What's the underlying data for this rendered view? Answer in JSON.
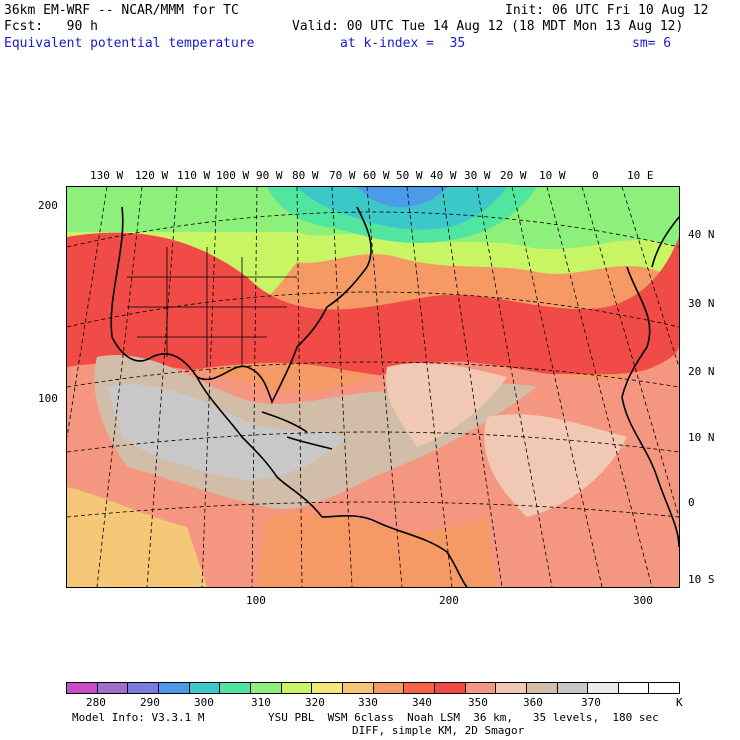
{
  "header": {
    "model": "36km EM-WRF -- NCAR/MMM for TC",
    "init": "Init: 06 UTC Fri 10 Aug 12",
    "fcst": "Fcst:   90 h",
    "valid": "Valid: 00 UTC Tue 14 Aug 12 (18 MDT Mon 13 Aug 12)",
    "field": "Equivalent potential temperature",
    "level": "at k-index =  35",
    "smooth": "sm= 6"
  },
  "map": {
    "lon_labels": [
      "130 W",
      "120 W",
      "110 W",
      "100 W",
      "90 W",
      "80 W",
      "70 W",
      "60 W",
      "50 W",
      "40 W",
      "30 W",
      "20 W",
      "10 W",
      "0",
      "10 E"
    ],
    "lat_labels": [
      "40 N",
      "30 N",
      "20 N",
      "10 N",
      "0",
      "10 S"
    ],
    "grid_y_labels": [
      "200",
      "100"
    ],
    "grid_x_labels": [
      "100",
      "200",
      "300"
    ]
  },
  "colorbar": {
    "colors": [
      "#c84bc8",
      "#a06ecf",
      "#7a7ae0",
      "#4b9be8",
      "#3cc8c8",
      "#50e6a0",
      "#8cf07a",
      "#c8f564",
      "#f5e678",
      "#f5c878",
      "#f59a64",
      "#f56446",
      "#f04b46",
      "#f59680",
      "#f0c8b4",
      "#d2bea8",
      "#c8c8c8",
      "#ebebeb",
      "#ffffff",
      "#ffffff"
    ],
    "tick_labels": [
      "280",
      "290",
      "300",
      "310",
      "320",
      "330",
      "340",
      "350",
      "360",
      "370"
    ],
    "unit": "K"
  },
  "footer": {
    "info": "Model Info: V3.3.1 M",
    "physics": "YSU PBL  WSM 6class  Noah LSM  36 km,   35 levels,  180 sec",
    "diff": "DIFF, simple KM, 2D Smagor"
  }
}
